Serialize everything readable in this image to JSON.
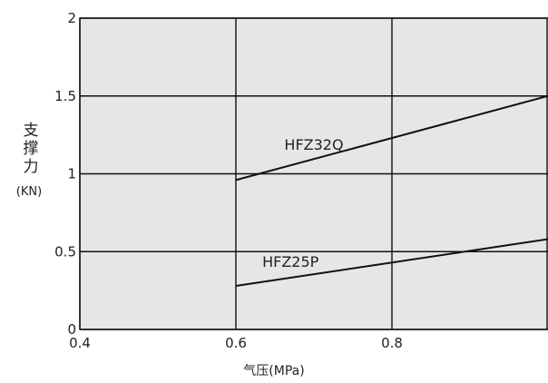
{
  "chart_data": {
    "type": "line",
    "xlabel": "气压(MPa)",
    "ylabel_chars": [
      "支",
      "撑",
      "力"
    ],
    "ylabel_unit": "(KN)",
    "xlim": [
      0.4,
      1.0
    ],
    "ylim": [
      0,
      2
    ],
    "x_ticks": [
      0.4,
      0.6,
      0.8
    ],
    "x_tick_labels": [
      "0.4",
      "0.6",
      "0.8"
    ],
    "y_ticks": [
      0,
      0.5,
      1,
      1.5,
      2
    ],
    "y_tick_labels": [
      "0",
      "0.5",
      "1",
      "1.5",
      "2"
    ],
    "grid": true,
    "series": [
      {
        "name": "HFZ32Q",
        "x": [
          0.6,
          1.0
        ],
        "y": [
          0.96,
          1.5
        ]
      },
      {
        "name": "HFZ25P",
        "x": [
          0.6,
          1.0
        ],
        "y": [
          0.28,
          0.58
        ]
      }
    ],
    "colors": {
      "plot_bg": "#e6e6e6",
      "grid": "#111111",
      "line": "#111111"
    }
  }
}
